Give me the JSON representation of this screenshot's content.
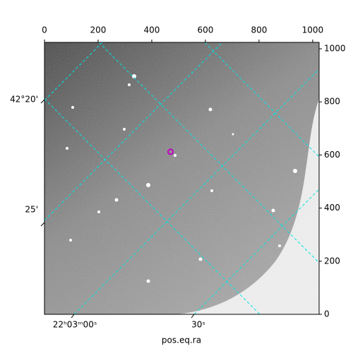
{
  "chart_data": {
    "type": "image",
    "xlabel": "pos.eq.ra",
    "xlim": [
      0,
      1024
    ],
    "ylim": [
      0,
      1024
    ],
    "xticks": [
      0,
      200,
      400,
      600,
      800,
      1000
    ],
    "yticks": [
      0,
      200,
      400,
      600,
      800,
      1000
    ],
    "ra_tick_labels": [
      "22ʰ03ᵐ00ˢ",
      "30ˢ"
    ],
    "dec_tick_labels": [
      "42°20'",
      "25'"
    ],
    "marker": {
      "x": 470,
      "y": 612,
      "color": "#c000c0"
    },
    "grid_color": "#00e5e5"
  }
}
